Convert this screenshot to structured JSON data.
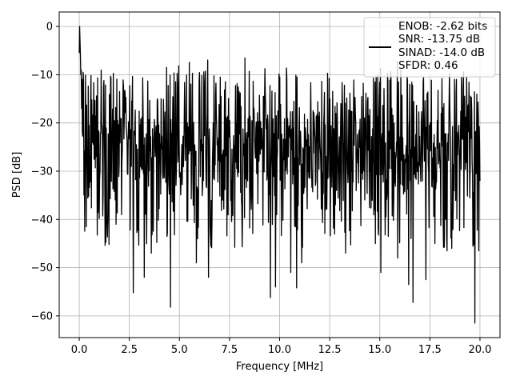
{
  "chart_data": {
    "type": "line",
    "title": "",
    "xlabel": "Frequency [MHz]",
    "ylabel": "PSD [dB]",
    "xlim": [
      -1.0,
      21.0
    ],
    "ylim": [
      -64.5,
      3.0
    ],
    "xticks": [
      0.0,
      2.5,
      5.0,
      7.5,
      10.0,
      12.5,
      15.0,
      17.5,
      20.0
    ],
    "xtick_labels": [
      "0.0",
      "2.5",
      "5.0",
      "7.5",
      "10.0",
      "12.5",
      "15.0",
      "17.5",
      "20.0"
    ],
    "yticks": [
      0,
      -10,
      -20,
      -30,
      -40,
      -50,
      -60
    ],
    "ytick_labels": [
      "0",
      "−10",
      "−20",
      "−30",
      "−40",
      "−50",
      "−60"
    ],
    "grid": true,
    "legend_position": "upper-right",
    "line_color": "#000000",
    "series": [
      {
        "legend_lines": [
          "ENOB: -2.62 bits",
          "SNR: -13.75 dB",
          "SINAD: -14.0 dB",
          "SFDR: 0.46"
        ],
        "x_range": [
          0.0,
          20.0
        ],
        "points": 1024,
        "peak": {
          "x": 0.0,
          "y": 0.0
        },
        "initial_values": [
          -5.5,
          0.0,
          -3.0,
          -6.0,
          -10.0,
          -14.0,
          -17.0,
          -11.0,
          -22.0
        ],
        "noise_floor_db": -25.0,
        "typical_range_db": [
          -38.0,
          -12.0
        ],
        "deep_nulls": [
          {
            "x": 0.35,
            "y": -41.5
          },
          {
            "x": 2.7,
            "y": -55.2
          },
          {
            "x": 3.25,
            "y": -52.0
          },
          {
            "x": 3.6,
            "y": -47.0
          },
          {
            "x": 4.55,
            "y": -58.2
          },
          {
            "x": 5.85,
            "y": -49.0
          },
          {
            "x": 6.45,
            "y": -52.0
          },
          {
            "x": 9.55,
            "y": -56.2
          },
          {
            "x": 9.8,
            "y": -54.0
          },
          {
            "x": 10.55,
            "y": -51.0
          },
          {
            "x": 10.85,
            "y": -54.2
          },
          {
            "x": 11.1,
            "y": -49.0
          },
          {
            "x": 13.3,
            "y": -47.0
          },
          {
            "x": 15.05,
            "y": -51.0
          },
          {
            "x": 15.9,
            "y": -48.0
          },
          {
            "x": 16.45,
            "y": -53.5
          },
          {
            "x": 16.65,
            "y": -57.2
          },
          {
            "x": 17.3,
            "y": -52.5
          },
          {
            "x": 18.35,
            "y": -46.5
          },
          {
            "x": 19.75,
            "y": -61.5
          },
          {
            "x": 19.95,
            "y": -46.5
          }
        ],
        "tall_peaks": [
          {
            "x": 0.1,
            "y": -9.0
          },
          {
            "x": 0.2,
            "y": -9.5
          },
          {
            "x": 10.0,
            "y": -10.5
          },
          {
            "x": 13.05,
            "y": -16.0
          },
          {
            "x": 18.2,
            "y": -16.0
          }
        ]
      }
    ]
  }
}
